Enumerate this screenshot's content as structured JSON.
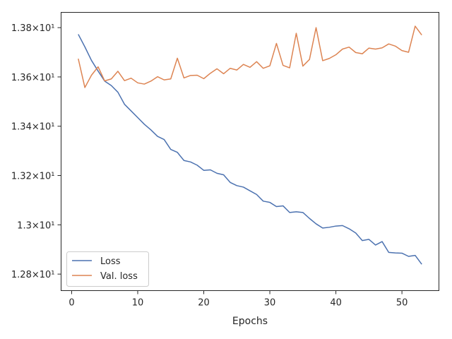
{
  "chart_data": {
    "type": "line",
    "title": "",
    "xlabel": "Epochs",
    "ylabel": "",
    "xlim": [
      -1.6,
      55.6
    ],
    "ylim": [
      12.733,
      13.862
    ],
    "grid": false,
    "legend_position": "lower-left",
    "x_ticks": [
      0,
      10,
      20,
      30,
      40,
      50
    ],
    "x_tick_labels": [
      "0",
      "10",
      "20",
      "30",
      "40",
      "50"
    ],
    "y_ticks": [
      12.8,
      13.0,
      13.2,
      13.4,
      13.6,
      13.8
    ],
    "y_tick_labels": [
      "1.28×10¹",
      "1.3×10¹",
      "1.32×10¹",
      "1.34×10¹",
      "1.36×10¹",
      "1.38×10¹"
    ],
    "x": [
      1,
      2,
      3,
      4,
      5,
      6,
      7,
      8,
      9,
      10,
      11,
      12,
      13,
      14,
      15,
      16,
      17,
      18,
      19,
      20,
      21,
      22,
      23,
      24,
      25,
      26,
      27,
      28,
      29,
      30,
      31,
      32,
      33,
      34,
      35,
      36,
      37,
      38,
      39,
      40,
      41,
      42,
      43,
      44,
      45,
      46,
      47,
      48,
      49,
      50,
      51,
      52,
      53
    ],
    "series": [
      {
        "name": "Loss",
        "color": "#4c72b0",
        "values": [
          13.773,
          13.722,
          13.667,
          13.624,
          13.583,
          13.565,
          13.538,
          13.489,
          13.462,
          13.435,
          13.408,
          13.385,
          13.359,
          13.346,
          13.306,
          13.294,
          13.261,
          13.255,
          13.242,
          13.221,
          13.223,
          13.209,
          13.203,
          13.172,
          13.159,
          13.153,
          13.138,
          13.123,
          13.096,
          13.091,
          13.074,
          13.077,
          13.05,
          13.053,
          13.05,
          13.026,
          13.004,
          12.987,
          12.99,
          12.995,
          12.997,
          12.984,
          12.967,
          12.936,
          12.941,
          12.918,
          12.932,
          12.888,
          12.886,
          12.885,
          12.872,
          12.876,
          12.84
        ]
      },
      {
        "name": "Val. loss",
        "color": "#dd8452",
        "values": [
          13.674,
          13.557,
          13.607,
          13.641,
          13.584,
          13.592,
          13.623,
          13.585,
          13.595,
          13.576,
          13.571,
          13.583,
          13.601,
          13.588,
          13.592,
          13.676,
          13.596,
          13.606,
          13.607,
          13.593,
          13.615,
          13.633,
          13.613,
          13.635,
          13.628,
          13.651,
          13.639,
          13.662,
          13.635,
          13.645,
          13.736,
          13.647,
          13.637,
          13.777,
          13.644,
          13.671,
          13.8,
          13.666,
          13.675,
          13.69,
          13.713,
          13.721,
          13.699,
          13.694,
          13.717,
          13.713,
          13.718,
          13.734,
          13.725,
          13.707,
          13.7,
          13.806,
          13.77
        ]
      }
    ]
  }
}
